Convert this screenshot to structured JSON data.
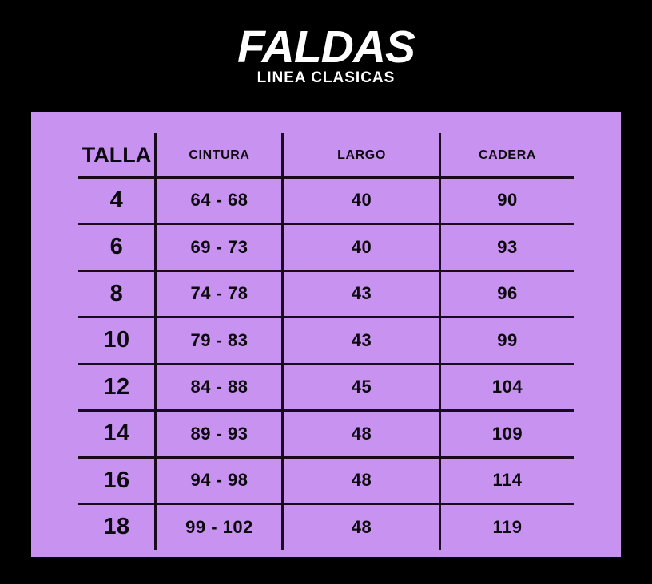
{
  "chart_data": {
    "type": "table",
    "title": "FALDAS",
    "subtitle": "LINEA CLASICAS",
    "columns": [
      "TALLA",
      "CINTURA",
      "LARGO",
      "CADERA"
    ],
    "rows": [
      [
        "4",
        "64 - 68",
        "40",
        "90"
      ],
      [
        "6",
        "69 - 73",
        "40",
        "93"
      ],
      [
        "8",
        "74 - 78",
        "43",
        "96"
      ],
      [
        "10",
        "79 - 83",
        "43",
        "99"
      ],
      [
        "12",
        "84 - 88",
        "45",
        "104"
      ],
      [
        "14",
        "89 - 93",
        "48",
        "109"
      ],
      [
        "16",
        "94 - 98",
        "48",
        "114"
      ],
      [
        "18",
        "99 - 102",
        "48",
        "119"
      ]
    ]
  },
  "colors": {
    "background": "#000000",
    "panel": "#c893f0",
    "grid_line": "#1a0a1e",
    "table_text": "#0d0a0f",
    "heading_text": "#ffffff"
  }
}
